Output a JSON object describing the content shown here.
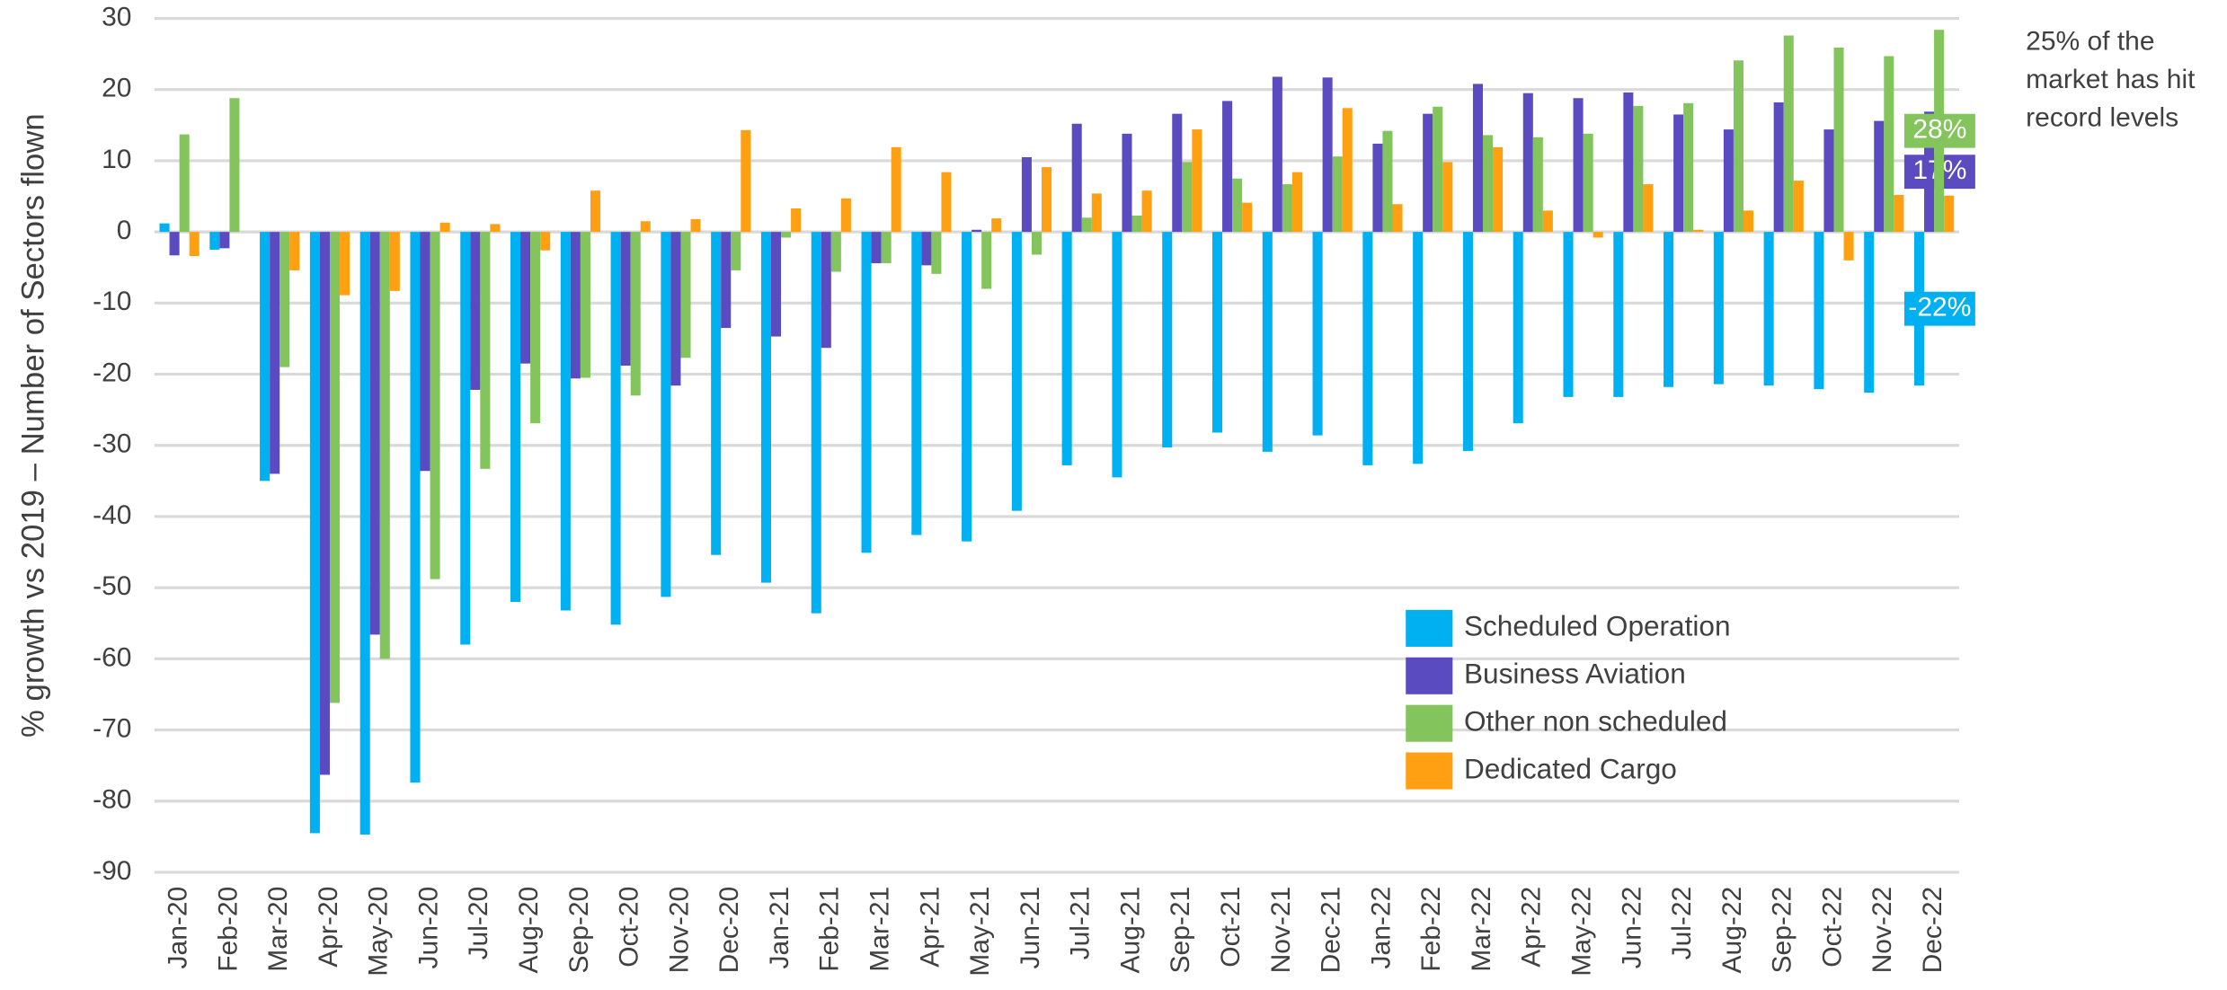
{
  "chart_data": {
    "type": "bar",
    "y_label": "% growth vs 2019 – Number of Sectors flown",
    "annotation": [
      "25% of the",
      "market has hit",
      "record levels"
    ],
    "categories": [
      "Jan-20",
      "Feb-20",
      "Mar-20",
      "Apr-20",
      "May-20",
      "Jun-20",
      "Jul-20",
      "Aug-20",
      "Sep-20",
      "Oct-20",
      "Nov-20",
      "Dec-20",
      "Jan-21",
      "Feb-21",
      "Mar-21",
      "Apr-21",
      "May-21",
      "Jun-21",
      "Jul-21",
      "Aug-21",
      "Sep-21",
      "Oct-21",
      "Nov-21",
      "Dec-21",
      "Jan-22",
      "Feb-22",
      "Mar-22",
      "Apr-22",
      "May-22",
      "Jun-22",
      "Jul-22",
      "Aug-22",
      "Sep-22",
      "Oct-22",
      "Nov-22",
      "Dec-22"
    ],
    "series": [
      {
        "name": "Scheduled Operation",
        "color": "#00b0f0",
        "values": [
          1.2,
          -2.5,
          -35,
          -84.5,
          -84.7,
          -77.4,
          -58,
          -52,
          -53.2,
          -55.2,
          -51.3,
          -45.4,
          -49.3,
          -53.6,
          -45.1,
          -42.6,
          -43.5,
          -39.2,
          -32.8,
          -34.5,
          -30.3,
          -28.2,
          -30.9,
          -28.6,
          -32.8,
          -32.6,
          -30.8,
          -26.9,
          -23.2,
          -23.2,
          -21.8,
          -21.4,
          -21.6,
          -22.1,
          -22.6,
          -21.6
        ],
        "value_labels": [
          null,
          null,
          null,
          null,
          null,
          null,
          null,
          null,
          null,
          null,
          null,
          null,
          null,
          null,
          null,
          null,
          null,
          null,
          null,
          null,
          null,
          null,
          null,
          null,
          null,
          null,
          null,
          null,
          null,
          null,
          null,
          null,
          null,
          null,
          null,
          "-22%"
        ]
      },
      {
        "name": "Business Aviation",
        "color": "#5b4bc0",
        "values": [
          -3.3,
          -2.3,
          -34,
          -76.3,
          -56.6,
          -33.6,
          -22.2,
          -18.5,
          -20.6,
          -18.8,
          -21.6,
          -13.5,
          -14.7,
          -16.3,
          -4.4,
          -4.7,
          0.3,
          10.5,
          15.2,
          13.8,
          16.6,
          18.4,
          21.8,
          21.7,
          12.4,
          16.6,
          20.8,
          19.5,
          18.8,
          19.6,
          16.5,
          14.4,
          18.2,
          14.4,
          15.6,
          16.9
        ],
        "value_labels": [
          null,
          null,
          null,
          null,
          null,
          null,
          null,
          null,
          null,
          null,
          null,
          null,
          null,
          null,
          null,
          null,
          null,
          null,
          null,
          null,
          null,
          null,
          null,
          null,
          null,
          null,
          null,
          null,
          null,
          null,
          null,
          null,
          null,
          null,
          null,
          "17%"
        ]
      },
      {
        "name": "Other non scheduled",
        "color": "#84c45c",
        "values": [
          13.7,
          18.8,
          -19,
          -66.2,
          -60,
          -48.8,
          -33.3,
          -26.9,
          -20.5,
          -23,
          -17.7,
          -5.4,
          -0.8,
          -5.6,
          -4.4,
          -5.9,
          -8,
          -3.2,
          2,
          2.3,
          9.8,
          7.5,
          6.7,
          10.6,
          14.2,
          17.6,
          13.6,
          13.3,
          13.8,
          17.7,
          18.1,
          24.1,
          27.6,
          25.9,
          24.7,
          28.4
        ],
        "value_labels": [
          null,
          null,
          null,
          null,
          null,
          null,
          null,
          null,
          null,
          null,
          null,
          null,
          null,
          null,
          null,
          null,
          null,
          null,
          null,
          null,
          null,
          null,
          null,
          null,
          null,
          null,
          null,
          null,
          null,
          null,
          null,
          null,
          null,
          null,
          null,
          "28%"
        ]
      },
      {
        "name": "Dedicated Cargo",
        "color": "#ffa012",
        "values": [
          -3.4,
          0,
          -5.4,
          -8.9,
          -8.3,
          1.3,
          1.1,
          -2.6,
          5.8,
          1.5,
          1.8,
          14.3,
          3.3,
          4.7,
          11.9,
          8.4,
          1.9,
          9.1,
          5.4,
          5.8,
          14.4,
          4.1,
          8.4,
          17.4,
          3.9,
          9.8,
          11.9,
          3,
          -0.8,
          6.7,
          0.3,
          3,
          7.2,
          -4,
          5.2,
          5.1
        ]
      }
    ],
    "ylim": [
      -90,
      30
    ],
    "yticks": [
      -90,
      -80,
      -70,
      -60,
      -50,
      -40,
      -30,
      -20,
      -10,
      0,
      10,
      20,
      30
    ],
    "grid": true,
    "legend": "lower right"
  }
}
